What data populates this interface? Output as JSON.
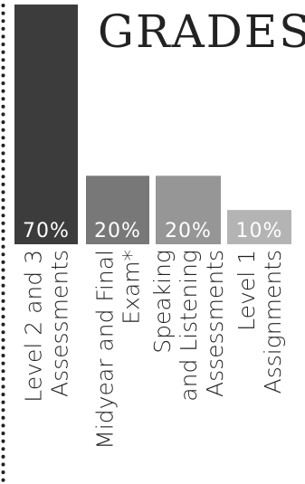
{
  "page": {
    "title": "GRADES"
  },
  "colors": {
    "bar_1": "#3c3c3c",
    "bar_2": "#787878",
    "bar_3": "#969696",
    "bar_4": "#b4b4b4",
    "text": "#222222",
    "value_label": "#ffffff",
    "border_dots": "#222222"
  },
  "chart_data": {
    "type": "bar",
    "title": "GRADES",
    "categories": [
      "Level 2 and 3 Assessments",
      "Midyear and Final Exam*",
      "Speaking and Listening Assessments",
      "Level 1 Assignments"
    ],
    "category_lines": [
      [
        "Level 2 and 3",
        "Assessments"
      ],
      [
        "Midyear and Final",
        "Exam*"
      ],
      [
        "Speaking",
        "and Listening",
        "Assessments"
      ],
      [
        "Level 1",
        "Assignments"
      ]
    ],
    "values": [
      70,
      20,
      20,
      10
    ],
    "value_labels": [
      "70%",
      "20%",
      "20%",
      "10%"
    ],
    "ylim": [
      0,
      70
    ],
    "xlabel": "",
    "ylabel": "",
    "grid": false,
    "legend": "none"
  }
}
